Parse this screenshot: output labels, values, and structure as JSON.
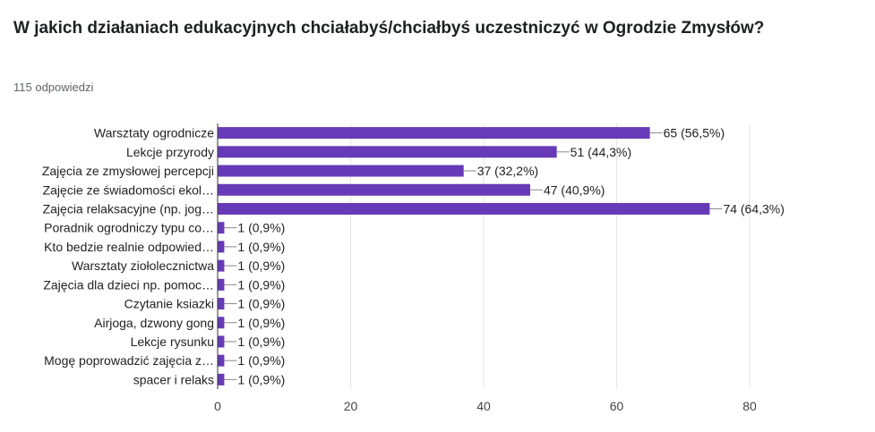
{
  "question": {
    "title": "W jakich działaniach edukacyjnych chciałabyś/chciałbyś uczestniczyć w Ogrodzie Zmysłów?",
    "responses": "115 odpowiedzi"
  },
  "colors": {
    "bar": "#673ab7",
    "grid": "#e6e6e6",
    "axis": "#333333",
    "connector": "#888888"
  },
  "chart_data": {
    "type": "bar",
    "orientation": "horizontal",
    "categories": [
      "Warsztaty ogrodnicze",
      "Lekcje przyrody",
      "Zajęcia ze zmysłowej percepcji",
      "Zajęcie ze świadomości ekol…",
      "Zajęcia relaksacyjne (np. jog…",
      "Poradnik ogrodniczy typu co…",
      "Kto bedzie realnie odpowied…",
      "Warsztaty ziołolecznictwa",
      "Zajęcia dla dzieci np. pomoc…",
      "Czytanie ksiazki",
      "Airjoga, dzwony gong",
      "Lekcje rysunku",
      "Mogę poprowadzić zajęcia z…",
      "spacer i relaks"
    ],
    "values": [
      65,
      51,
      37,
      47,
      74,
      1,
      1,
      1,
      1,
      1,
      1,
      1,
      1,
      1
    ],
    "value_labels": [
      "65 (56,5%)",
      "51 (44,3%)",
      "37 (32,2%)",
      "47 (40,9%)",
      "74 (64,3%)",
      "1 (0,9%)",
      "1 (0,9%)",
      "1 (0,9%)",
      "1 (0,9%)",
      "1 (0,9%)",
      "1 (0,9%)",
      "1 (0,9%)",
      "1 (0,9%)",
      "1 (0,9%)"
    ],
    "xlim": [
      0,
      80
    ],
    "xticks": [
      0,
      20,
      40,
      60,
      80
    ],
    "xtick_labels": [
      "0",
      "20",
      "40",
      "60",
      "80"
    ],
    "grid": true,
    "legend": "none"
  }
}
